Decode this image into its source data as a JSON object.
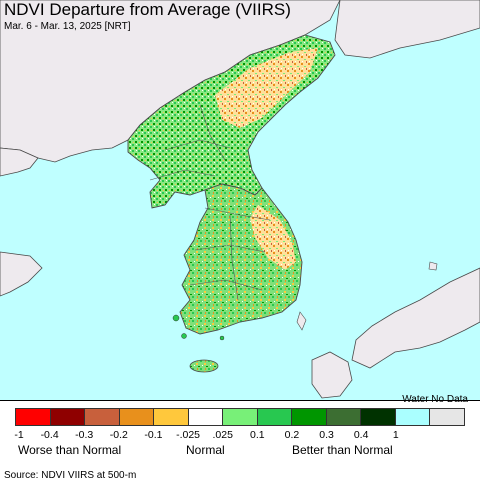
{
  "title": "NDVI Departure from Average (VIIRS)",
  "subtitle": "Mar. 6 - Mar. 13, 2025 [NRT]",
  "colors": {
    "water": "#bfffff",
    "no_data": "#eeeaee",
    "boundary": "#4a4a4a"
  },
  "legend": {
    "water_label": "Water No Data",
    "swatches": [
      "#ff0000",
      "#8f0000",
      "#c8603c",
      "#e8901c",
      "#ffc83c",
      "#ffffff",
      "#78f078",
      "#28c850",
      "#009600",
      "#3c6e32",
      "#003200",
      "#aaffff",
      "#e6e6e6"
    ],
    "ticks": [
      "-1",
      "-0.4",
      "-0.3",
      "-0.2",
      "-0.1",
      "-.025",
      ".025",
      "0.1",
      "0.2",
      "0.3",
      "0.4",
      "1"
    ],
    "categories": {
      "worse": "Worse than Normal",
      "normal": "Normal",
      "better": "Better than Normal"
    }
  },
  "source": "Source: NDVI VIIRS at 500-m"
}
